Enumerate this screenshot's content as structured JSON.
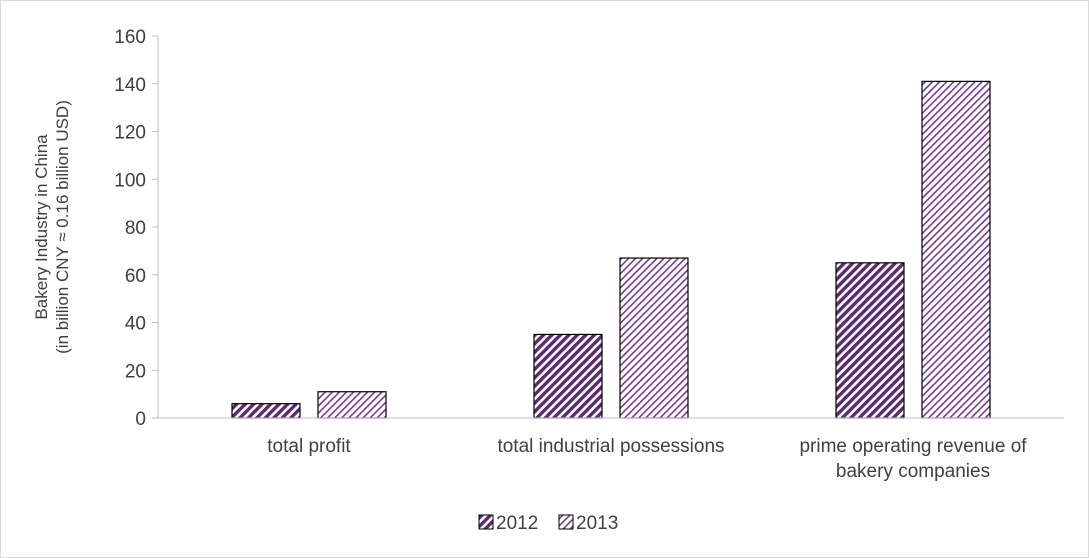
{
  "chart_data": {
    "type": "bar",
    "title": "",
    "xlabel": "",
    "ylabel": "Bakery Industry in China\n(in billion CNY ≈ 0.16 billion USD)",
    "ylim": [
      0,
      160
    ],
    "yticks": [
      0,
      20,
      40,
      60,
      80,
      100,
      120,
      140,
      160
    ],
    "grid": false,
    "legend_position": "bottom",
    "categories": [
      "total profit",
      "total industrial possessions",
      "prime operating revenue of\nbakery companies"
    ],
    "series": [
      {
        "name": "2012",
        "values": [
          6,
          35,
          65
        ],
        "color": "#5b2a6e",
        "pattern": "dense-diagonal-stripes"
      },
      {
        "name": "2013",
        "values": [
          11,
          67,
          141
        ],
        "color": "#7a3a8c",
        "pattern": "light-diagonal-stripes"
      }
    ]
  }
}
